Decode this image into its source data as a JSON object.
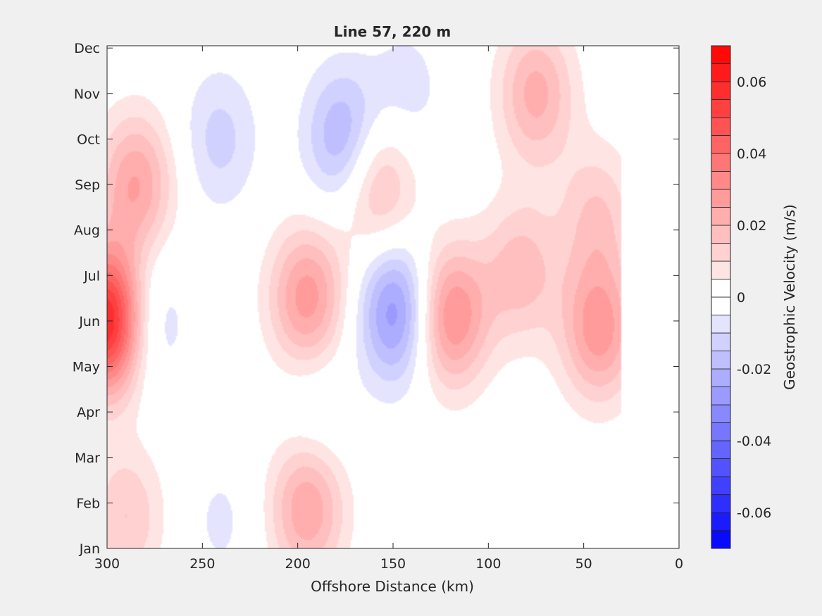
{
  "chart_data": {
    "type": "heatmap",
    "subtype": "filled-contour",
    "title": "Line 57, 220 m",
    "xlabel": "Offshore Distance (km)",
    "ylabel": "",
    "x_reversed": true,
    "xlim": [
      300,
      0
    ],
    "xticks": [
      300,
      250,
      200,
      150,
      100,
      50,
      0
    ],
    "xtick_labels": [
      "300",
      "250",
      "200",
      "150",
      "100",
      "50",
      "0"
    ],
    "yticks": [
      "Jan",
      "Feb",
      "Mar",
      "Apr",
      "May",
      "Jun",
      "Jul",
      "Aug",
      "Sep",
      "Oct",
      "Nov",
      "Dec"
    ],
    "grid": false,
    "data_extent_km": [
      300,
      30
    ],
    "colorbar": {
      "label": "Geostrophic Velocity (m/s)",
      "clim": [
        -0.07,
        0.07
      ],
      "step": 0.005,
      "tick_values": [
        -0.06,
        -0.04,
        -0.02,
        0,
        0.02,
        0.04,
        0.06
      ],
      "tick_labels": [
        "-0.06",
        "-0.04",
        "-0.02",
        "0",
        "0.02",
        "0.04",
        "0.06"
      ],
      "colormap": "blue-white-red",
      "negative_color": "#0000ff",
      "zero_color": "#ffffff",
      "positive_color": "#ff0000"
    },
    "features": [
      {
        "x_km": 300,
        "month": 6.0,
        "value": 0.065
      },
      {
        "x_km": 285,
        "month": 9.0,
        "value": 0.025
      },
      {
        "x_km": 290,
        "month": 1.7,
        "value": 0.015
      },
      {
        "x_km": 280,
        "month": 6.0,
        "value": -0.015
      },
      {
        "x_km": 241,
        "month": 10.0,
        "value": -0.012
      },
      {
        "x_km": 176,
        "month": 10.0,
        "value": -0.022
      },
      {
        "x_km": 143,
        "month": 11.0,
        "value": -0.008
      },
      {
        "x_km": 195,
        "month": 6.5,
        "value": 0.028
      },
      {
        "x_km": 195,
        "month": 1.9,
        "value": 0.025
      },
      {
        "x_km": 158,
        "month": 9.0,
        "value": 0.02
      },
      {
        "x_km": 148,
        "month": 6.2,
        "value": -0.03
      },
      {
        "x_km": 120,
        "month": 6.1,
        "value": 0.032
      },
      {
        "x_km": 83,
        "month": 7.1,
        "value": 0.018
      },
      {
        "x_km": 75,
        "month": 11.0,
        "value": 0.022
      },
      {
        "x_km": 42,
        "month": 5.8,
        "value": 0.028
      },
      {
        "x_km": 43,
        "month": 8.3,
        "value": 0.015
      },
      {
        "x_km": 240,
        "month": 1.6,
        "value": -0.006
      },
      {
        "x_km": 190,
        "month": 4.0,
        "value": -0.006
      }
    ]
  }
}
